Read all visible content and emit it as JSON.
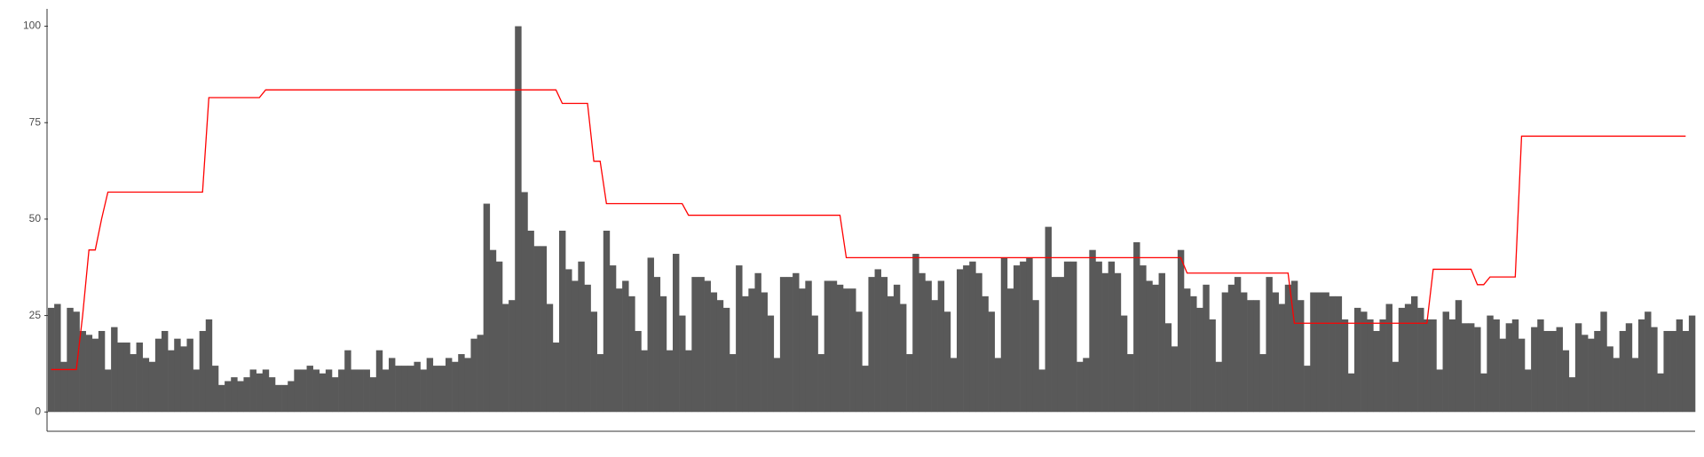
{
  "chart_data": {
    "type": "bar",
    "series": [
      {
        "type": "bar",
        "color": "#595959",
        "values": [
          27,
          28,
          13,
          27,
          26,
          21,
          20,
          19,
          21,
          11,
          22,
          18,
          18,
          15,
          18,
          14,
          13,
          19,
          21,
          16,
          19,
          17,
          19,
          11,
          21,
          24,
          12,
          7,
          8,
          9,
          8,
          9,
          11,
          10,
          11,
          9,
          7,
          7,
          8,
          11,
          11,
          12,
          11,
          10,
          11,
          9,
          11,
          16,
          11,
          11,
          11,
          9,
          16,
          11,
          14,
          12,
          12,
          12,
          13,
          11,
          14,
          12,
          12,
          14,
          13,
          15,
          14,
          19,
          20,
          54,
          42,
          39,
          28,
          29,
          100,
          57,
          47,
          43,
          43,
          28,
          18,
          47,
          37,
          34,
          39,
          33,
          26,
          15,
          47,
          38,
          32,
          34,
          30,
          21,
          16,
          40,
          35,
          30,
          16,
          41,
          25,
          16,
          35,
          35,
          34,
          31,
          29,
          27,
          15,
          38,
          30,
          32,
          36,
          31,
          25,
          14,
          35,
          35,
          36,
          32,
          34,
          25,
          15,
          34,
          34,
          33,
          32,
          32,
          26,
          12,
          35,
          37,
          35,
          30,
          33,
          28,
          15,
          41,
          36,
          34,
          29,
          34,
          26,
          14,
          37,
          38,
          39,
          36,
          30,
          26,
          14,
          40,
          32,
          38,
          39,
          40,
          29,
          11,
          48,
          35,
          35,
          39,
          39,
          13,
          14,
          42,
          39,
          36,
          39,
          36,
          25,
          15,
          44,
          38,
          34,
          33,
          36,
          23,
          17,
          42,
          32,
          30,
          27,
          33,
          24,
          13,
          31,
          33,
          35,
          31,
          29,
          29,
          15,
          35,
          31,
          28,
          33,
          34,
          29,
          12,
          31,
          31,
          31,
          30,
          30,
          24,
          10,
          27,
          26,
          24,
          21,
          24,
          28,
          13,
          27,
          28,
          30,
          27,
          24,
          24,
          11,
          26,
          24,
          29,
          23,
          23,
          22,
          10,
          25,
          24,
          19,
          23,
          24,
          19,
          11,
          22,
          24,
          21,
          21,
          22,
          16,
          9,
          23,
          20,
          19,
          21,
          26,
          17,
          14,
          21,
          23,
          14,
          24,
          26,
          22,
          10,
          21,
          21,
          24,
          21,
          25
        ]
      },
      {
        "type": "line",
        "color": "#ff0000",
        "values": [
          11,
          11,
          11,
          11,
          11,
          25,
          42,
          42,
          50,
          57,
          57,
          57,
          57,
          57,
          57,
          57,
          57,
          57,
          57,
          57,
          57,
          57,
          57,
          57,
          57,
          81.5,
          81.5,
          81.5,
          81.5,
          81.5,
          81.5,
          81.5,
          81.5,
          81.5,
          83.5,
          83.5,
          83.5,
          83.5,
          83.5,
          83.5,
          83.5,
          83.5,
          83.5,
          83.5,
          83.5,
          83.5,
          83.5,
          83.5,
          83.5,
          83.5,
          83.5,
          83.5,
          83.5,
          83.5,
          83.5,
          83.5,
          83.5,
          83.5,
          83.5,
          83.5,
          83.5,
          83.5,
          83.5,
          83.5,
          83.5,
          83.5,
          83.5,
          83.5,
          83.5,
          83.5,
          83.5,
          83.5,
          83.5,
          83.5,
          83.5,
          83.5,
          83.5,
          83.5,
          83.5,
          83.5,
          83.5,
          80,
          80,
          80,
          80,
          80,
          65,
          65,
          54,
          54,
          54,
          54,
          54,
          54,
          54,
          54,
          54,
          54,
          54,
          54,
          54,
          51,
          51,
          51,
          51,
          51,
          51,
          51,
          51,
          51,
          51,
          51,
          51,
          51,
          51,
          51,
          51,
          51,
          51,
          51,
          51,
          51,
          51,
          51,
          51,
          51,
          40,
          40,
          40,
          40,
          40,
          40,
          40,
          40,
          40,
          40,
          40,
          40,
          40,
          40,
          40,
          40,
          40,
          40,
          40,
          40,
          40,
          40,
          40,
          40,
          40,
          40,
          40,
          40,
          40,
          40,
          40,
          40,
          40,
          40,
          40,
          40,
          40,
          40,
          40,
          40,
          40,
          40,
          40,
          40,
          40,
          40,
          40,
          40,
          40,
          40,
          40,
          40,
          40,
          40,
          36,
          36,
          36,
          36,
          36,
          36,
          36,
          36,
          36,
          36,
          36,
          36,
          36,
          36,
          36,
          36,
          36,
          23,
          23,
          23,
          23,
          23,
          23,
          23,
          23,
          23,
          23,
          23,
          23,
          23,
          23,
          23,
          23,
          23,
          23,
          23,
          23,
          23,
          23,
          37,
          37,
          37,
          37,
          37,
          37,
          37,
          33,
          33,
          35,
          35,
          35,
          35,
          35,
          71.5,
          71.5,
          71.5,
          71.5,
          71.5,
          71.5,
          71.5,
          71.5,
          71.5,
          71.5,
          71.5,
          71.5,
          71.5,
          71.5,
          71.5,
          71.5,
          71.5,
          71.5,
          71.5,
          71.5,
          71.5,
          71.5,
          71.5,
          71.5,
          71.5,
          71.5,
          71.5
        ]
      }
    ],
    "ylim": [
      -5,
      104.5
    ],
    "yticks": [
      0,
      25,
      50,
      75,
      100
    ],
    "grid": false
  }
}
